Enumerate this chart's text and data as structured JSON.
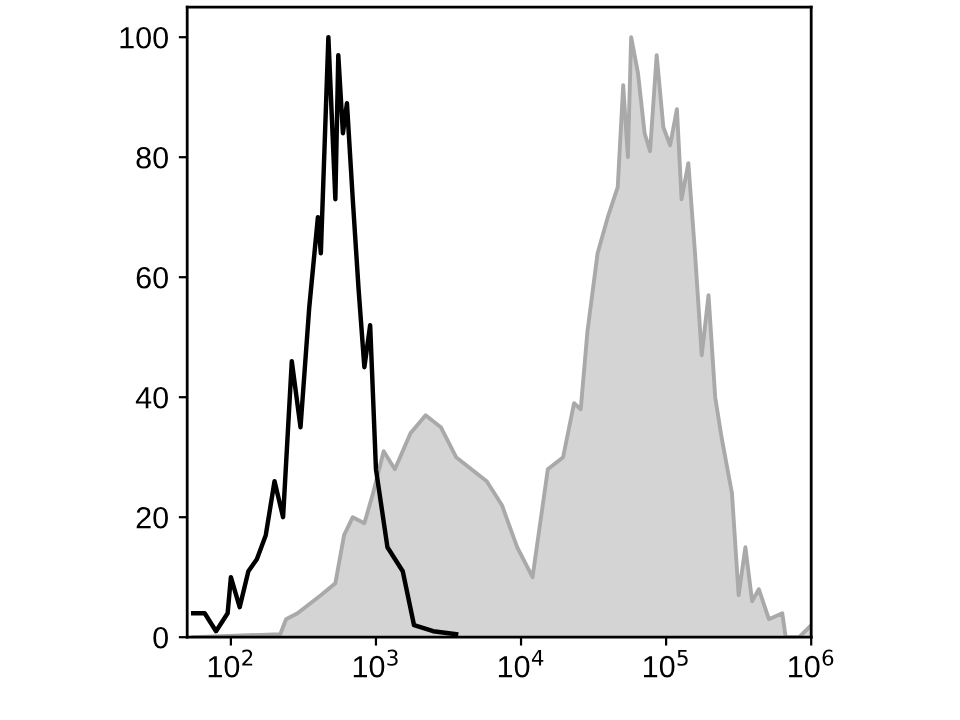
{
  "chart_data": {
    "type": "line",
    "log": "x",
    "xlim": [
      50,
      1000000
    ],
    "xticks": [
      {
        "value": 100,
        "label": "10$^{2}$"
      },
      {
        "value": 1000,
        "label": "10$^{3}$"
      },
      {
        "value": 10000,
        "label": "10$^{4}$"
      },
      {
        "value": 100000,
        "label": "10$^{5}$"
      },
      {
        "value": 1000000,
        "label": "10$^{6}$"
      }
    ],
    "ylim": [
      0,
      105
    ],
    "yticks": [
      0,
      20,
      40,
      60,
      80,
      100
    ],
    "grid": false,
    "series": [
      {
        "type": "area",
        "color": "#a9a9a9",
        "x": [
          55,
          219,
          240,
          288,
          417,
          525,
          603,
          692,
          832,
          955,
          1130,
          1350,
          1730,
          2200,
          2800,
          3570,
          4550,
          5800,
          7390,
          9400,
          12000,
          15300,
          19500,
          23200,
          25800,
          28700,
          33700,
          39600,
          46400,
          50600,
          54500,
          57400,
          64000,
          71100,
          77500,
          86100,
          95700,
          106600,
          118700,
          127800,
          142300,
          158200,
          176000,
          196000,
          217900,
          242300,
          284300,
          316000,
          351800,
          391500,
          435500,
          511000,
          632000,
          667000,
          826000,
          1000000
        ],
        "values": [
          0,
          0.5,
          3,
          4,
          7,
          9,
          17,
          20,
          19,
          24,
          31,
          28,
          34,
          37,
          35,
          30,
          28,
          26,
          22,
          15,
          10,
          28,
          30,
          39,
          38,
          51,
          64,
          70,
          75,
          92,
          80,
          100,
          94,
          84,
          81,
          97,
          85,
          82,
          88,
          73,
          79,
          64,
          47,
          57,
          40,
          33,
          24,
          7,
          15,
          6,
          8,
          3,
          4,
          0,
          0,
          2
        ]
      },
      {
        "color": "#000000",
        "x": [
          55,
          66,
          79,
          95,
          100,
          115,
          132,
          151,
          174,
          200,
          229,
          263,
          302,
          347,
          398,
          417,
          470,
          525,
          550,
          592,
          631,
          692,
          759,
          832,
          912,
          1000,
          1200,
          1530,
          1830,
          2480,
          3570
        ],
        "values": [
          4,
          4,
          1,
          4,
          10,
          5,
          11,
          13,
          17,
          26,
          20,
          46,
          35,
          55,
          70,
          64,
          100,
          73,
          97,
          84,
          89,
          73,
          58,
          45,
          52,
          28,
          15,
          11,
          2,
          1,
          0.5
        ]
      }
    ]
  }
}
